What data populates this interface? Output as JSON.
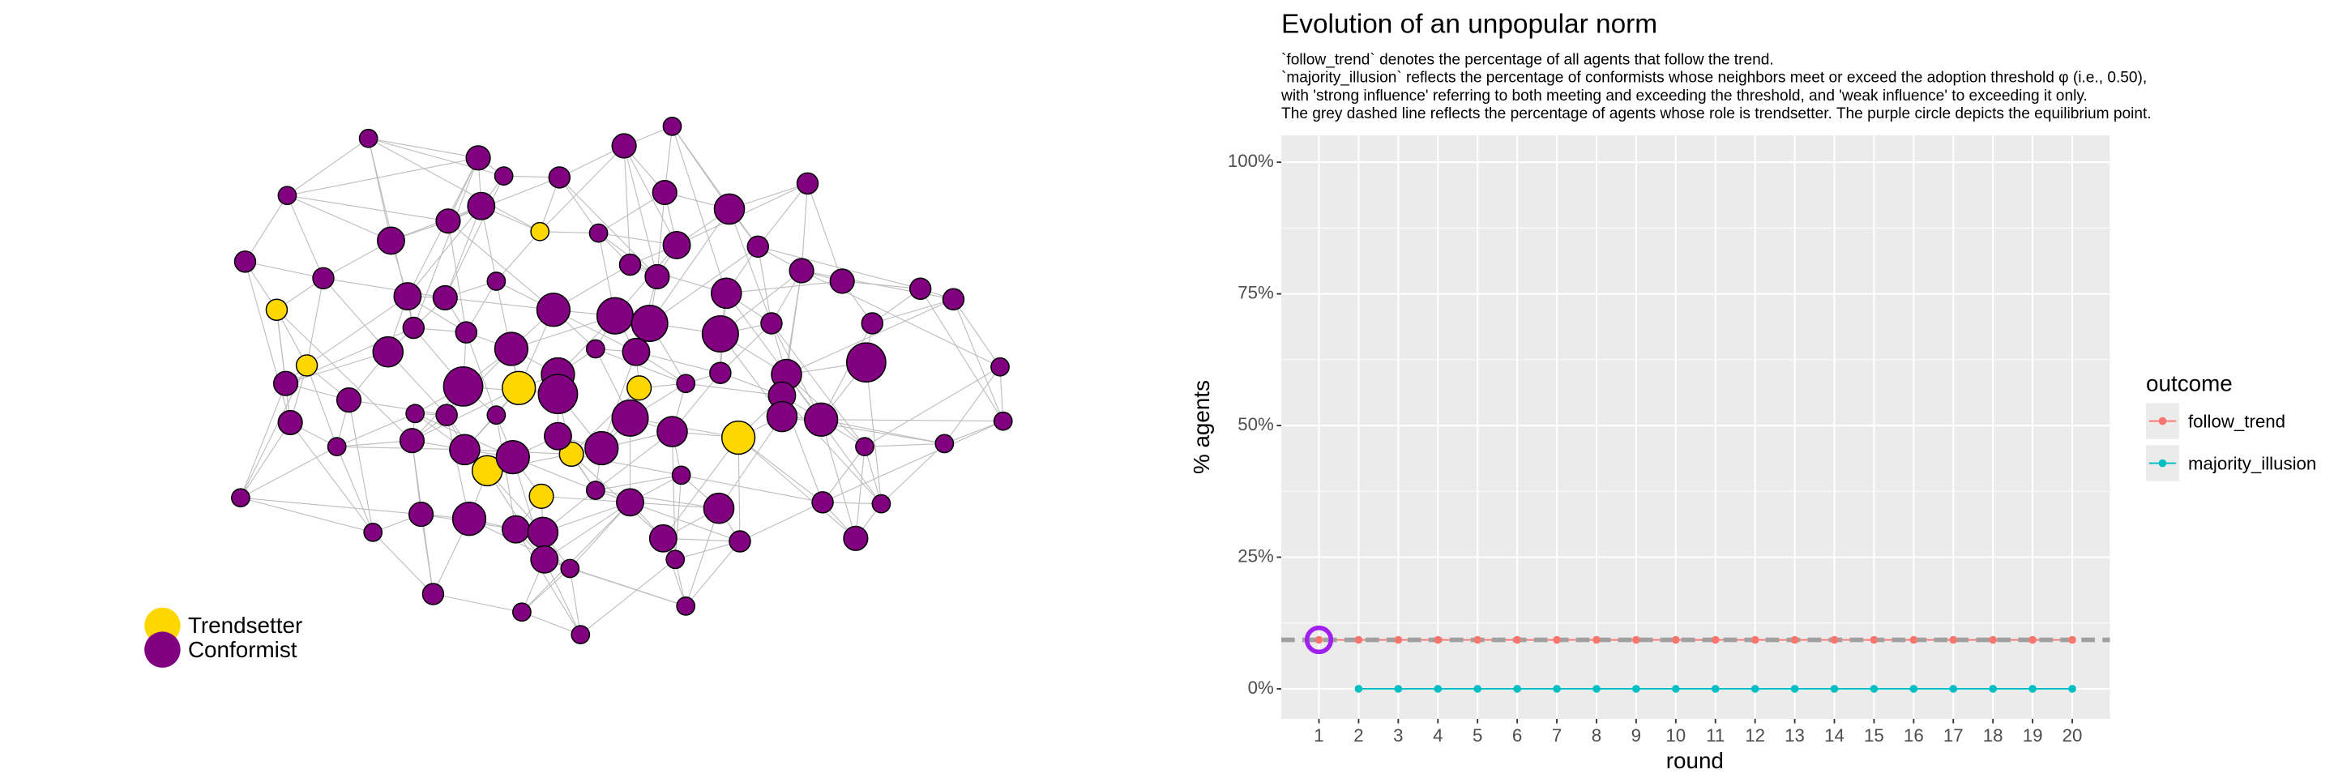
{
  "network": {
    "legend": [
      {
        "label": "Trendsetter",
        "color": "#FFD700"
      },
      {
        "label": "Conformist",
        "color": "#800080"
      }
    ]
  },
  "chart_data": {
    "type": "line",
    "title": "Evolution of an unpopular norm",
    "subtitle": [
      "`follow_trend` denotes the percentage of all agents that follow the trend.",
      "`majority_illusion` reflects the percentage of conformists whose neighbors meet or exceed the adoption threshold φ (i.e., 0.50),",
      "with 'strong influence' referring to both meeting and exceeding the threshold, and 'weak influence' to exceeding it only.",
      "The grey dashed line reflects the percentage of agents whose role is trendsetter. The purple circle depicts the equilibrium point."
    ],
    "x_label": "round",
    "y_label": "% agents",
    "legend_title": "outcome",
    "x": [
      1,
      2,
      3,
      4,
      5,
      6,
      7,
      8,
      9,
      10,
      11,
      12,
      13,
      14,
      15,
      16,
      17,
      18,
      19,
      20
    ],
    "series": [
      {
        "name": "follow_trend",
        "color": "#F8766D",
        "values": [
          9.3,
          9.3,
          9.3,
          9.3,
          9.3,
          9.3,
          9.3,
          9.3,
          9.3,
          9.3,
          9.3,
          9.3,
          9.3,
          9.3,
          9.3,
          9.3,
          9.3,
          9.3,
          9.3,
          9.3
        ]
      },
      {
        "name": "majority_illusion",
        "color": "#00BFC4",
        "values": [
          null,
          0,
          0,
          0,
          0,
          0,
          0,
          0,
          0,
          0,
          0,
          0,
          0,
          0,
          0,
          0,
          0,
          0,
          0,
          0
        ]
      }
    ],
    "reference_line": {
      "value": 9.3,
      "color": "#A0A0A0"
    },
    "equilibrium": {
      "x": 1,
      "y": 9.3,
      "color": "#A020F0"
    },
    "xlim": [
      0.05,
      20.95
    ],
    "ylim": [
      -5.7,
      105.1
    ],
    "xticks": [
      1,
      2,
      3,
      4,
      5,
      6,
      7,
      8,
      9,
      10,
      11,
      12,
      13,
      14,
      15,
      16,
      17,
      18,
      19,
      20
    ],
    "yticks": [
      {
        "value": 0,
        "label": "0%"
      },
      {
        "value": 25,
        "label": "25%"
      },
      {
        "value": 50,
        "label": "50%"
      },
      {
        "value": 75,
        "label": "75%"
      },
      {
        "value": 100,
        "label": "100%"
      }
    ],
    "grid": true,
    "legend_position": "right"
  }
}
